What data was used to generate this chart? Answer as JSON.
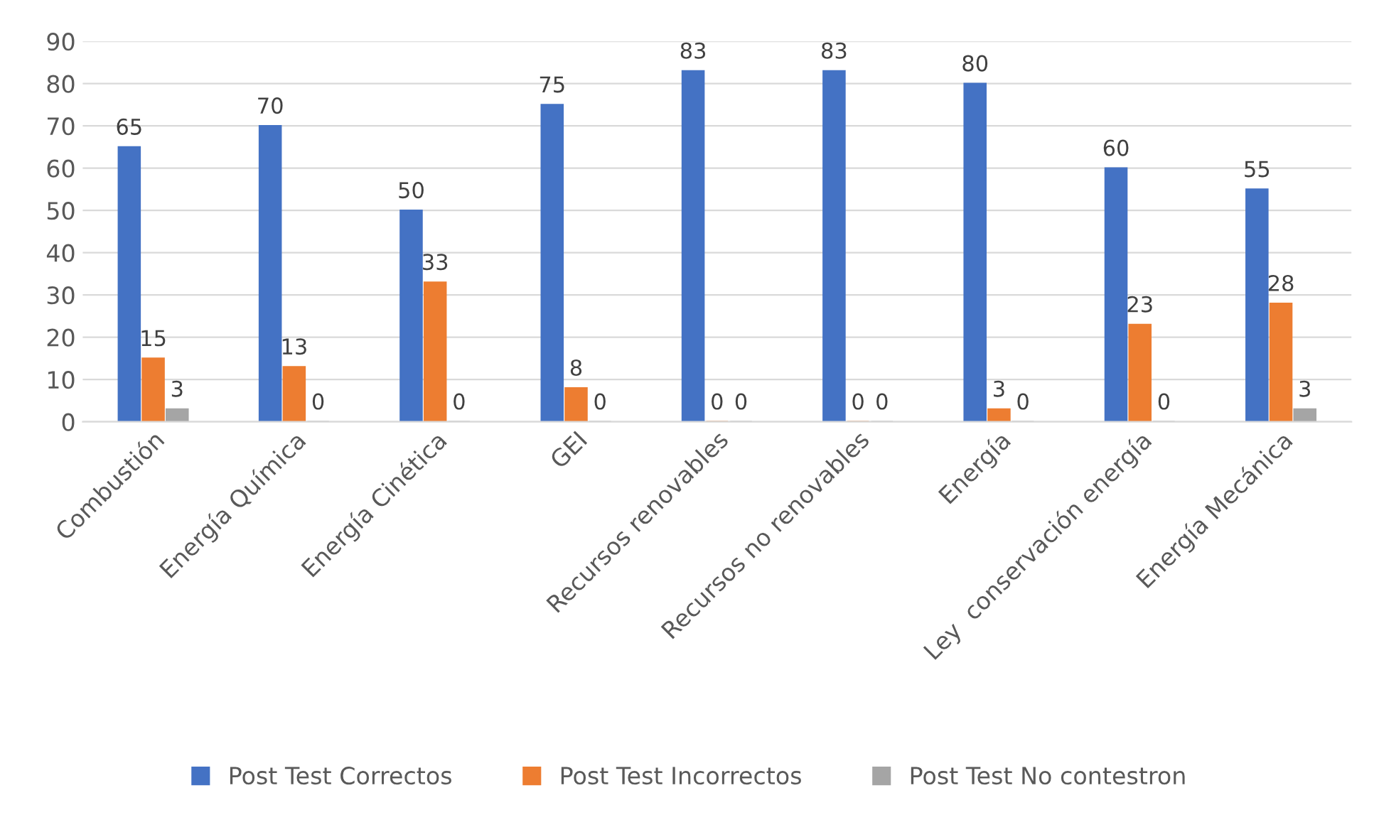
{
  "chart_data": {
    "type": "bar",
    "categories": [
      "Combustión",
      "Energía Química",
      "Energía Cinética",
      "GEI",
      "Recursos renovables",
      "Recursos no renovables",
      "Energía",
      "Ley  conservación energía",
      "Energía Mecánica"
    ],
    "series": [
      {
        "name": "Post Test Correctos",
        "color": "#4472c4",
        "values": [
          65,
          70,
          50,
          75,
          83,
          83,
          80,
          60,
          55
        ]
      },
      {
        "name": "Post Test Incorrectos",
        "color": "#ed7d31",
        "values": [
          15,
          13,
          33,
          8,
          0,
          0,
          3,
          23,
          28
        ]
      },
      {
        "name": "Post Test No contestron",
        "color": "#a5a5a5",
        "values": [
          3,
          0,
          0,
          0,
          0,
          0,
          0,
          0,
          3
        ]
      }
    ],
    "ylim": [
      0,
      90
    ],
    "yticks": [
      0,
      10,
      20,
      30,
      40,
      50,
      60,
      70,
      80,
      90
    ],
    "grid": "y",
    "legend": "bottom",
    "data_labels": true
  }
}
